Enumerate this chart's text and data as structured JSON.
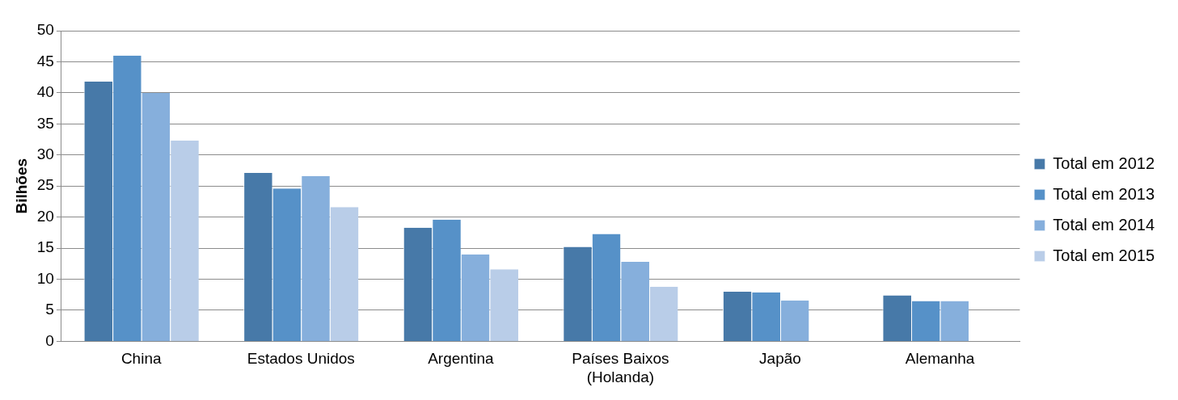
{
  "chart_data": {
    "type": "bar",
    "ylabel": "Bilhões",
    "categories": [
      "China",
      "Estados Unidos",
      "Argentina",
      "Países Baixos\n(Holanda)",
      "Japão",
      "Alemanha"
    ],
    "series": [
      {
        "name": "Total em 2012",
        "color": "#4779a8",
        "values": [
          41.8,
          27.1,
          18.3,
          15.2,
          8.0,
          7.4
        ]
      },
      {
        "name": "Total em 2013",
        "color": "#5691c8",
        "values": [
          46,
          24.6,
          19.6,
          17.3,
          7.9,
          6.5
        ]
      },
      {
        "name": "Total em 2014",
        "color": "#86afdc",
        "values": [
          40,
          26.6,
          14,
          12.8,
          6.6,
          6.5
        ]
      },
      {
        "name": "Total em 2015",
        "color": "#b9cde8",
        "values": [
          32.3,
          21.6,
          11.6,
          8.8,
          null,
          null
        ]
      }
    ],
    "ylim": [
      0,
      50
    ],
    "yticks": [
      0,
      5,
      10,
      15,
      20,
      25,
      30,
      35,
      40,
      45,
      50
    ],
    "grid": "y",
    "legend": "right"
  }
}
